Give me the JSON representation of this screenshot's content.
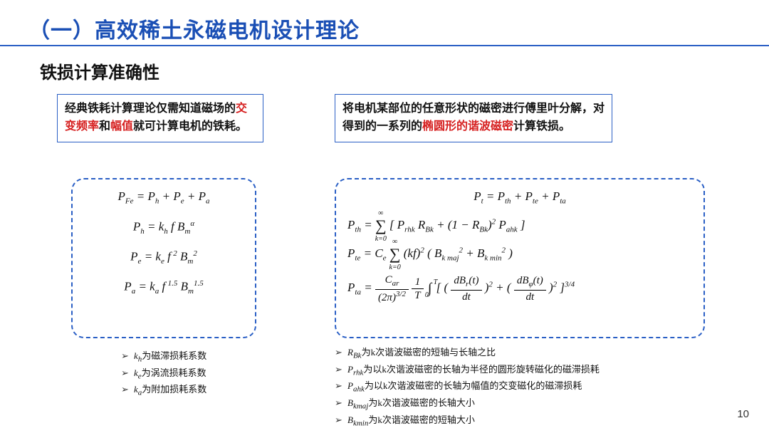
{
  "colors": {
    "accent": "#1a4fb5",
    "underline": "#2a5fc5",
    "highlight": "#d62020",
    "text": "#111111",
    "background": "#ffffff"
  },
  "section_title": "（一）高效稀土永磁电机设计理论",
  "subtitle": "铁损计算准确性",
  "left": {
    "desc_pre": "经典铁耗计算理论仅需知道磁场的",
    "desc_hl1": "交变频率",
    "desc_mid": "和",
    "desc_hl2": "幅值",
    "desc_post": "就可计算电机的铁耗。",
    "bullets": {
      "b1_sym": "k",
      "b1_sub": "h",
      "b1_txt": "为磁滞损耗系数",
      "b2_sym": "k",
      "b2_sub": "e",
      "b2_txt": "为涡流损耗系数",
      "b3_sym": "k",
      "b3_sub": "a",
      "b3_txt": "为附加损耗系数"
    }
  },
  "right": {
    "desc_pre": "将电机某部位的任意形状的磁密进行傅里叶分解，对得到的一系列的",
    "desc_hl": "椭圆形的谐波磁密",
    "desc_post": "计算铁损。",
    "bullets": {
      "b1_sym": "R",
      "b1_sub": "Bk",
      "b1_txt": "为k次谐波磁密的短轴与长轴之比",
      "b2_sym": "P",
      "b2_sub": "rhk",
      "b2_txt": "为以k次谐波磁密的长轴为半径的圆形旋转磁化的磁滞损耗",
      "b3_sym": "P",
      "b3_sub": "ahk",
      "b3_txt": "为以k次谐波磁密的长轴为幅值的交变磁化的磁滞损耗",
      "b4_sym": "B",
      "b4_sub": "kmaj",
      "b4_txt": "为k次谐波磁密的长轴大小",
      "b5_sym": "B",
      "b5_sub": "kmin",
      "b5_txt": "为k次谐波磁密的短轴大小"
    }
  },
  "page_number": "10"
}
